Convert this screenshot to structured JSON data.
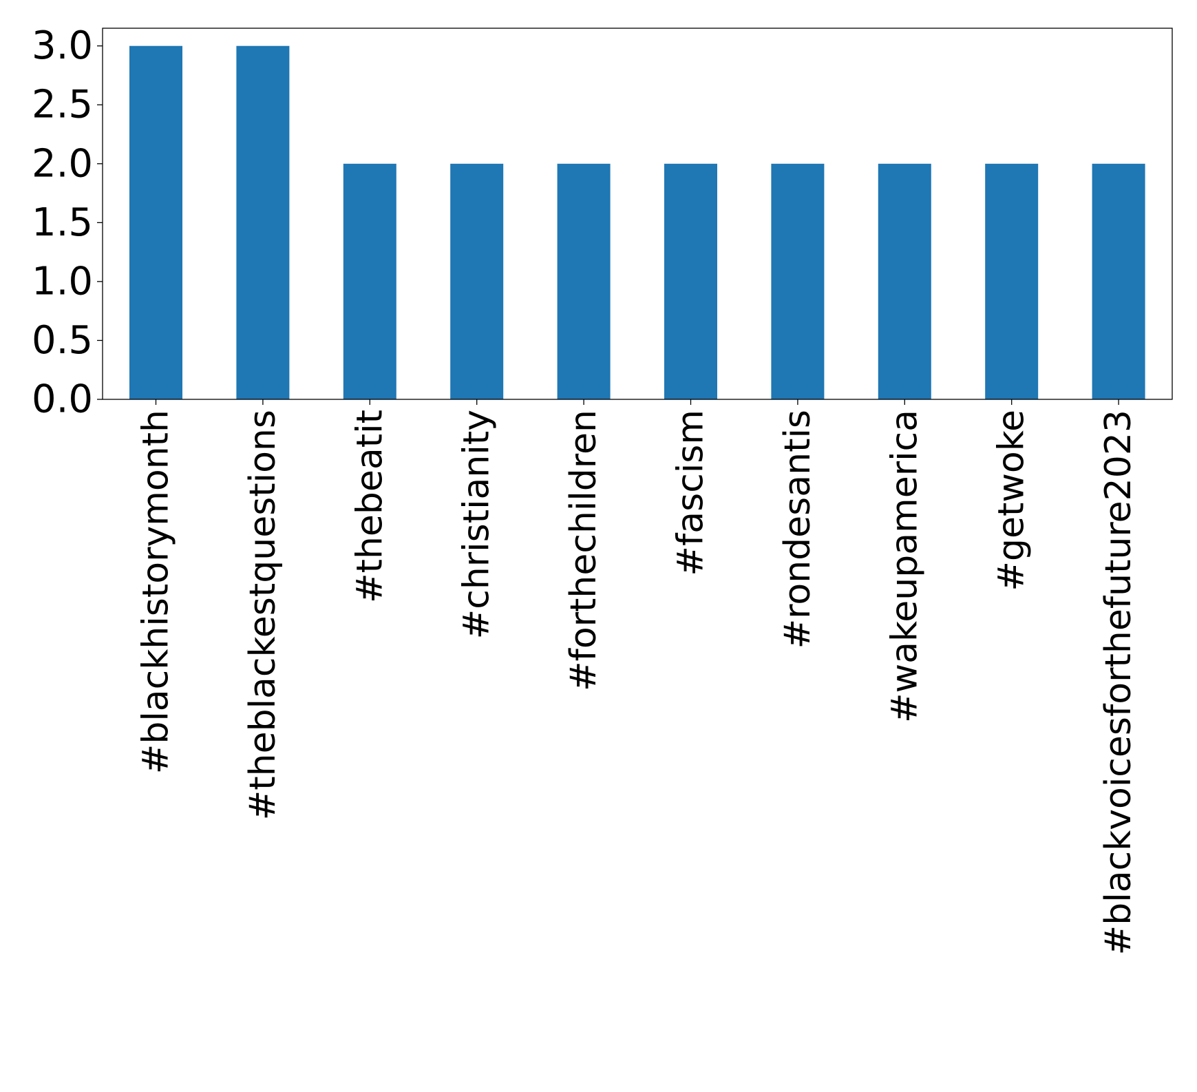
{
  "chart_data": {
    "type": "bar",
    "categories": [
      "#blackhistorymonth",
      "#theblackestquestions",
      "#thebeatit",
      "#christianity",
      "#forthechildren",
      "#fascism",
      "#rondesantis",
      "#wakeupamerica",
      "#getwoke",
      "#blackvoicesforthefuture2023"
    ],
    "values": [
      3,
      3,
      2,
      2,
      2,
      2,
      2,
      2,
      2,
      2
    ],
    "yticks": [
      "0.0",
      "0.5",
      "1.0",
      "1.5",
      "2.0",
      "2.5",
      "3.0"
    ],
    "ylim": [
      0,
      3.15
    ],
    "grid": false,
    "bar_color": "#1f77b4"
  }
}
